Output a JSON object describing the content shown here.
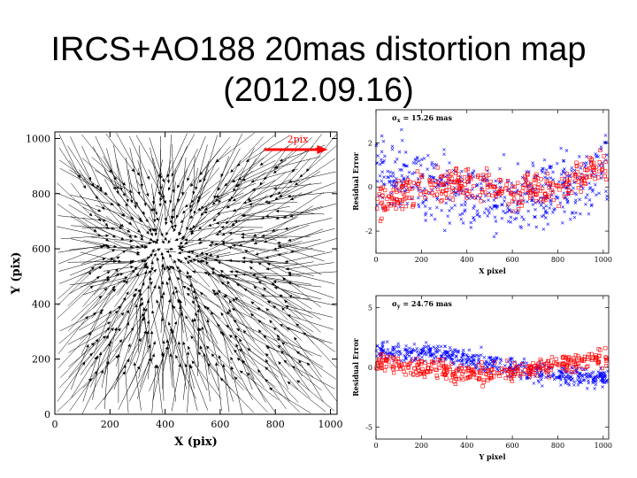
{
  "slide": {
    "title_line1": "IRCS+AO188 20mas distortion map",
    "title_line2": "(2012.09.16)"
  },
  "colors": {
    "series_x": "#0000ff",
    "series_squares": "#ff0000",
    "scale_arrow": "#ff0000",
    "vectors": "#000000"
  },
  "chart_data": [
    {
      "type": "quiver",
      "xlabel": "X (pix)",
      "ylabel": "Y (pix)",
      "xlim": [
        0,
        1024
      ],
      "ylim": [
        0,
        1024
      ],
      "xticks": [
        0,
        200,
        400,
        600,
        800,
        1000
      ],
      "yticks": [
        0,
        200,
        400,
        600,
        800,
        1000
      ],
      "scale_arrow": {
        "label": "2pix",
        "x_start": 760,
        "x_end": 990,
        "y": 960
      },
      "field_center": [
        400,
        600
      ],
      "note": "dense field of vectors pointing inward toward the field center"
    },
    {
      "type": "scatter",
      "annotation": "σx = 15.26 mas",
      "annotation_symbol": "σ",
      "annotation_sub": "x",
      "annotation_value": "= 15.26 mas",
      "xlabel": "X pixel",
      "ylabel": "Residual Error",
      "xlim": [
        0,
        1024
      ],
      "ylim": [
        -3,
        3.5
      ],
      "xticks": [
        0,
        200,
        400,
        600,
        800,
        1000
      ],
      "yticks": [
        -2,
        0,
        2
      ],
      "series": [
        {
          "marker": "x",
          "trend": [
            [
              0,
              0.6
            ],
            [
              200,
              0.2
            ],
            [
              400,
              -0.3
            ],
            [
              600,
              -0.6
            ],
            [
              800,
              -0.2
            ],
            [
              1000,
              0.8
            ]
          ],
          "spread": 1.1
        },
        {
          "marker": "square",
          "trend": [
            [
              0,
              -0.8
            ],
            [
              200,
              0.0
            ],
            [
              400,
              0.2
            ],
            [
              600,
              -0.2
            ],
            [
              800,
              0.0
            ],
            [
              1000,
              1.1
            ]
          ],
          "spread": 0.5
        }
      ]
    },
    {
      "type": "scatter",
      "annotation": "σy = 24.76 mas",
      "annotation_symbol": "σ",
      "annotation_sub": "y",
      "annotation_value": "= 24.76 mas",
      "xlabel": "Y pixel",
      "ylabel": "Residual Error",
      "xlim": [
        0,
        1024
      ],
      "ylim": [
        -6,
        6
      ],
      "xticks": [
        0,
        200,
        400,
        600,
        800,
        1000
      ],
      "yticks": [
        -5,
        0,
        5
      ],
      "series": [
        {
          "marker": "x",
          "trend": [
            [
              0,
              1.2
            ],
            [
              200,
              1.3
            ],
            [
              400,
              0.8
            ],
            [
              600,
              0.0
            ],
            [
              800,
              -0.7
            ],
            [
              1000,
              -0.9
            ]
          ],
          "spread": 0.6
        },
        {
          "marker": "square",
          "trend": [
            [
              0,
              0.4
            ],
            [
              200,
              0.0
            ],
            [
              400,
              -0.5
            ],
            [
              600,
              -0.4
            ],
            [
              800,
              0.2
            ],
            [
              1000,
              0.9
            ]
          ],
          "spread": 0.6
        }
      ]
    }
  ]
}
